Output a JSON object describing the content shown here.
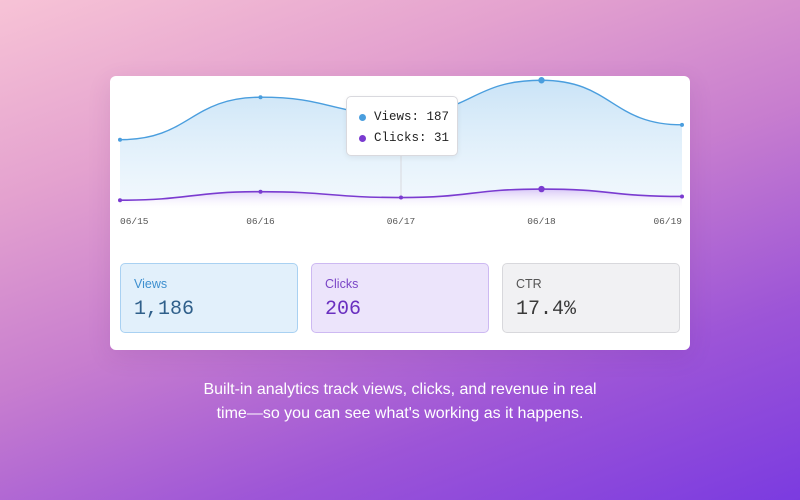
{
  "tooltip": {
    "views_label": "Views: 187",
    "clicks_label": "Clicks: 31"
  },
  "stats": {
    "views": {
      "label": "Views",
      "value": "1,186"
    },
    "clicks": {
      "label": "Clicks",
      "value": "206"
    },
    "ctr": {
      "label": "CTR",
      "value": "17.4%"
    }
  },
  "caption": {
    "line1": "Built-in analytics track views, clicks, and revenue in real",
    "line2": "time—so you can see what's working as it happens."
  },
  "colors": {
    "views": "#4a9ede",
    "clicks": "#7a3bd0"
  },
  "chart_data": {
    "type": "area",
    "categories": [
      "06/15",
      "06/16",
      "06/17",
      "06/18",
      "06/19"
    ],
    "series": [
      {
        "name": "Views",
        "values": [
          140,
          220,
          187,
          252,
          168
        ]
      },
      {
        "name": "Clicks",
        "values": [
          26,
          42,
          31,
          47,
          33
        ]
      }
    ],
    "ylim": [
      0,
      260
    ],
    "grid": false,
    "highlight_index": 2
  }
}
